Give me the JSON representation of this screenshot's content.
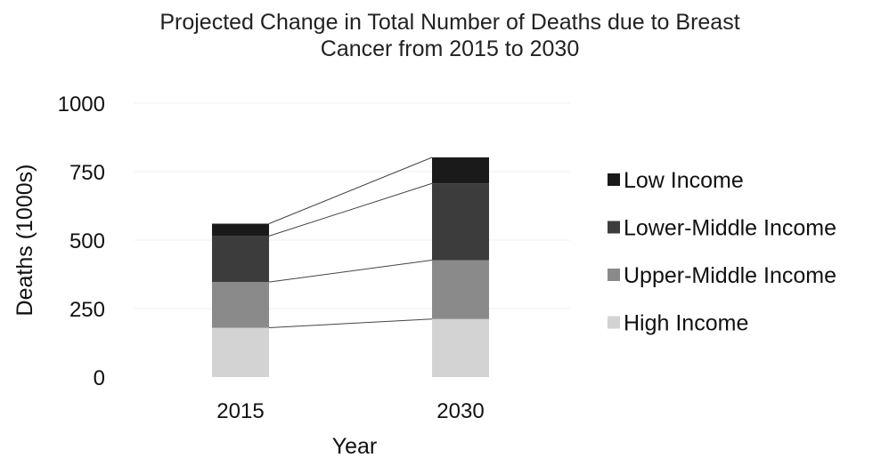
{
  "chart_data": {
    "type": "bar",
    "stacked": true,
    "title_line1": "Projected Change in Total Number of Deaths due to Breast",
    "title_line2": "Cancer from 2015 to 2030",
    "xlabel": "Year",
    "ylabel": "Deaths (1000s)",
    "ylim": [
      0,
      1000
    ],
    "yticks": [
      "0",
      "250",
      "500",
      "750",
      "1000"
    ],
    "categories": [
      "2015",
      "2030"
    ],
    "series": [
      {
        "name": "High Income",
        "values": [
          180,
          212
        ],
        "color": "#d3d3d3"
      },
      {
        "name": "Upper-Middle Income",
        "values": [
          167,
          215
        ],
        "color": "#8a8a8a"
      },
      {
        "name": "Lower-Middle Income",
        "values": [
          168,
          280
        ],
        "color": "#3c3c3c"
      },
      {
        "name": "Low Income",
        "values": [
          45,
          95
        ],
        "color": "#1a1a1a"
      }
    ],
    "connector_lines": true,
    "grid": true,
    "legend_position": "right"
  }
}
